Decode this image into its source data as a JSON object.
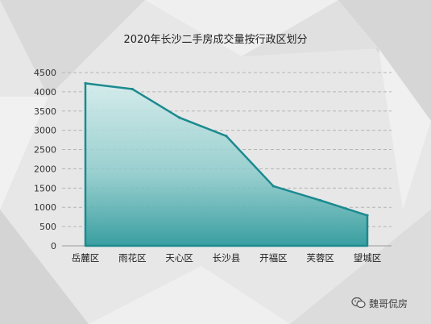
{
  "chart_data": {
    "type": "area",
    "title": "2020年长沙二手房成交量按行政区划分",
    "categories": [
      "岳麓区",
      "雨花区",
      "天心区",
      "长沙县",
      "开福区",
      "芙蓉区",
      "望城区"
    ],
    "values": [
      4220,
      4070,
      3330,
      2850,
      1550,
      1180,
      790
    ],
    "ylim": [
      0,
      4500
    ],
    "yticks": [
      0,
      500,
      1000,
      1500,
      2000,
      2500,
      3000,
      3500,
      4000,
      4500
    ],
    "grid": true,
    "colors": {
      "line": "#1c8a8f",
      "fill_top": "#d3ecec",
      "fill_bottom": "#2f9a9c"
    }
  },
  "watermark": {
    "text": "魏哥侃房",
    "icon": "wechat-icon"
  }
}
